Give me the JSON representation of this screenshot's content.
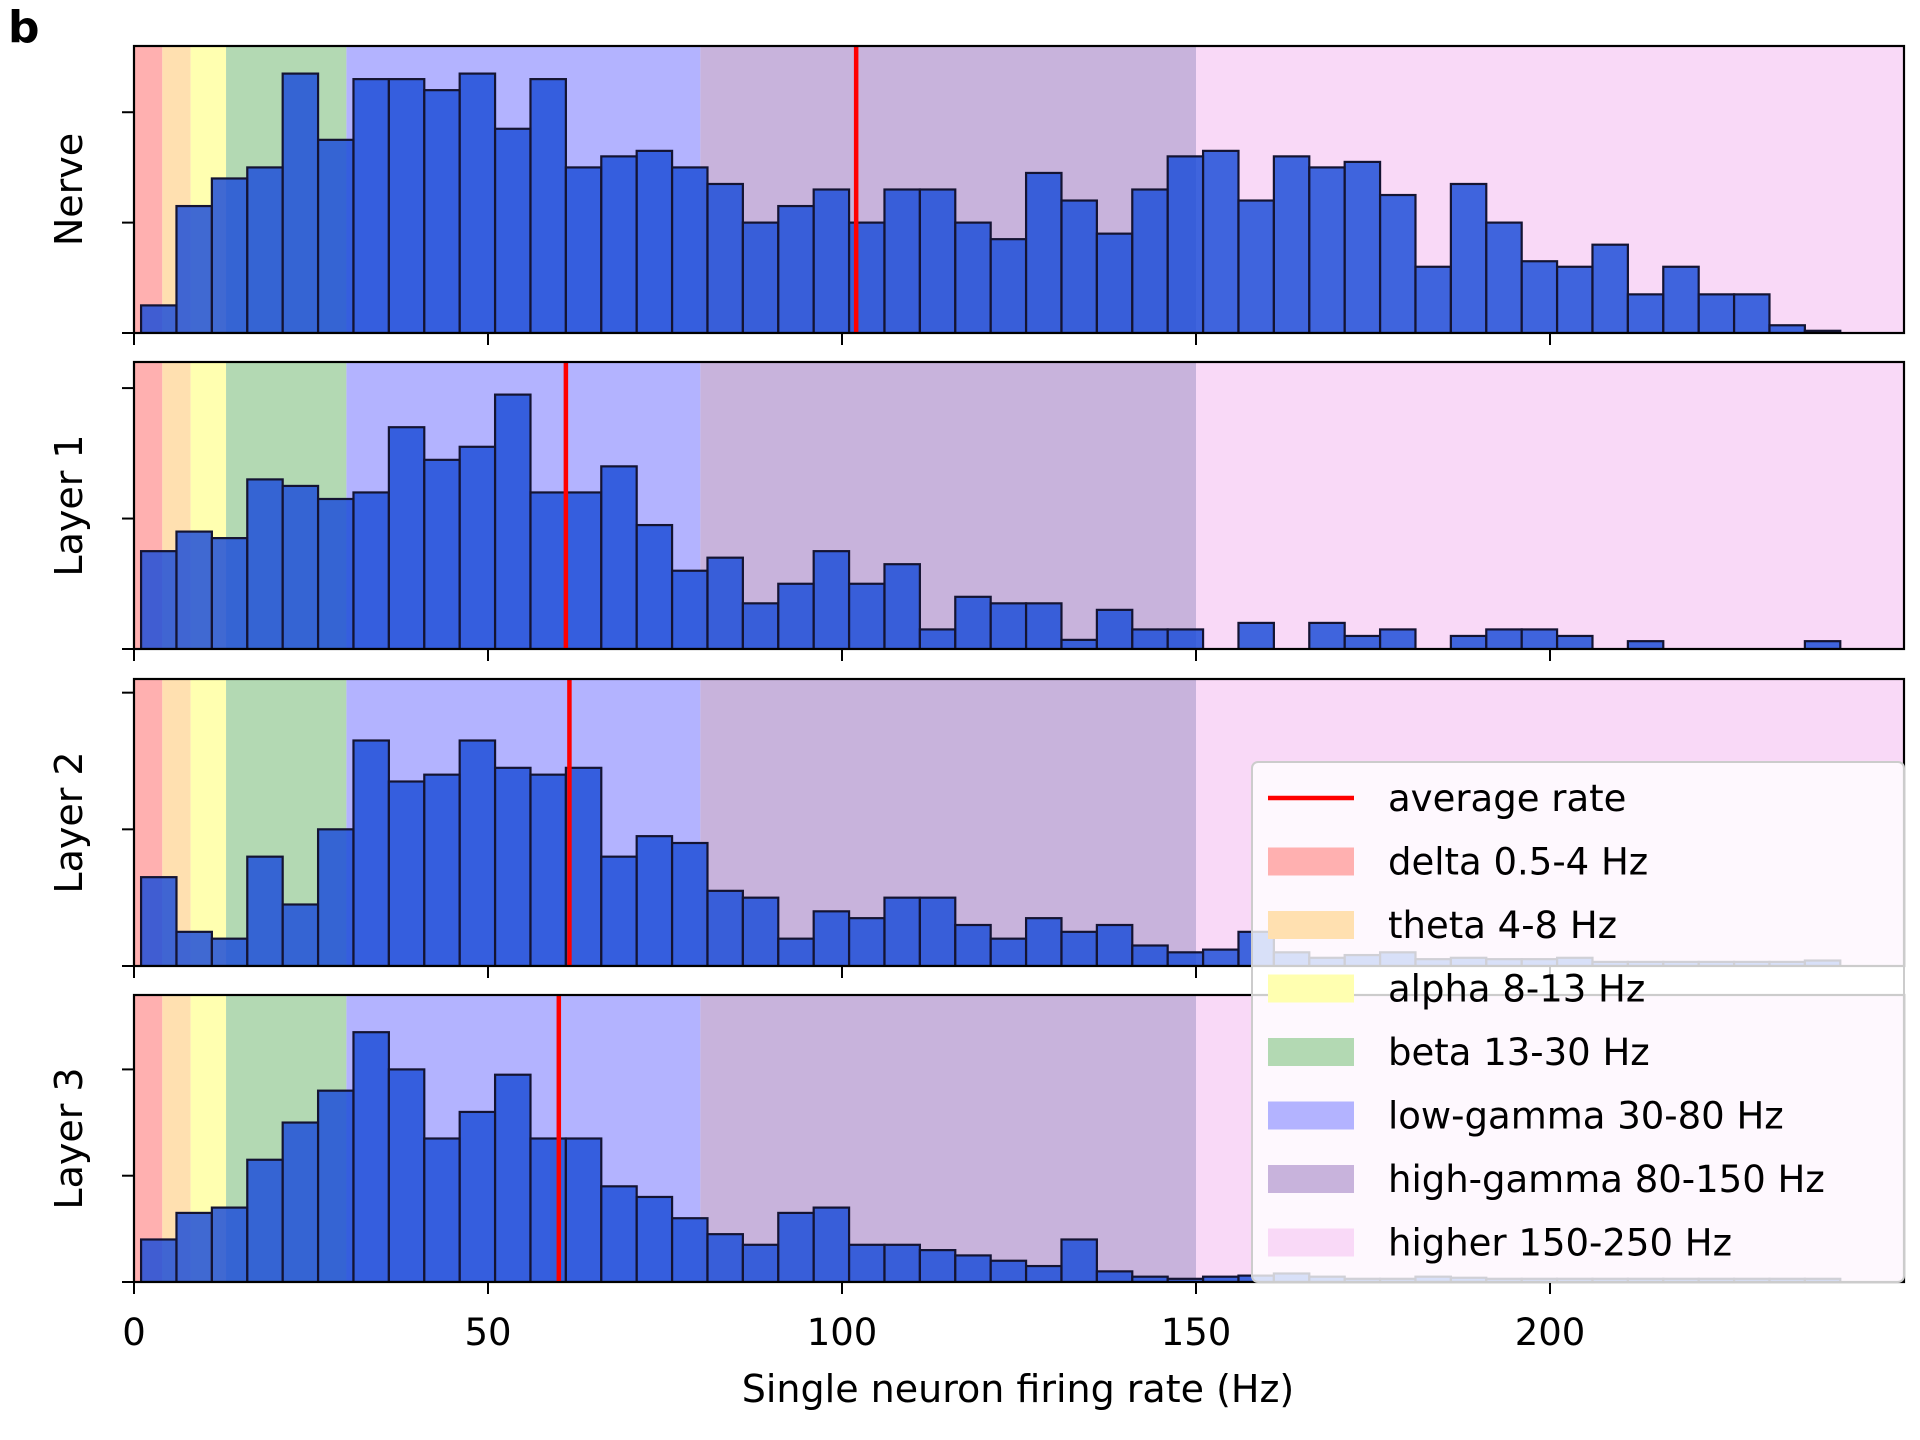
{
  "figure": {
    "panel_label": "b",
    "xlabel": "Single neuron firing rate (Hz)",
    "x_ticks": [
      0,
      50,
      100,
      150,
      200
    ]
  },
  "chart_data": {
    "type": "bar",
    "xlim": [
      0,
      250
    ],
    "bin_width": 5,
    "first_bin_start": 1,
    "bar_color": "#1f4fd8",
    "average_line_color": "#ff0000",
    "bands": [
      {
        "label": "delta 0.5-4 Hz",
        "from": 0,
        "to": 4,
        "color": "#ffb0b0"
      },
      {
        "label": "theta 4-8 Hz",
        "from": 4,
        "to": 8,
        "color": "#ffe0b0"
      },
      {
        "label": "alpha 8-13 Hz",
        "from": 8,
        "to": 13,
        "color": "#ffffb0"
      },
      {
        "label": "beta 13-30 Hz",
        "from": 13,
        "to": 30,
        "color": "#b3d9b3"
      },
      {
        "label": "low-gamma 30-80 Hz",
        "from": 30,
        "to": 80,
        "color": "#b3b3ff"
      },
      {
        "label": "high-gamma 80-150 Hz",
        "from": 80,
        "to": 150,
        "color": "#c8b3dc"
      },
      {
        "label": "higher 150-250 Hz",
        "from": 150,
        "to": 250,
        "color": "#f9d9f7"
      }
    ],
    "legend": {
      "position": "lower right",
      "average_label": "average rate"
    },
    "panels": [
      {
        "ylabel": "Nerve",
        "average_rate": 102,
        "ymax": 26,
        "y_ticks": [
          0,
          10,
          20
        ],
        "counts": [
          2.5,
          11.5,
          14,
          15,
          23.5,
          17.5,
          23,
          23,
          22,
          23.5,
          18.5,
          23,
          15,
          16,
          16.5,
          15,
          13.5,
          10,
          11.5,
          13,
          10,
          13,
          13,
          10,
          8.5,
          14.5,
          12,
          9,
          13,
          16,
          16.5,
          12,
          16,
          15,
          15.5,
          12.5,
          6,
          13.5,
          10,
          6.5,
          6,
          8,
          3.5,
          6,
          3.5,
          3.5,
          0.7,
          0.2
        ]
      },
      {
        "ylabel": "Layer 1",
        "average_rate": 61,
        "ymax": 22,
        "y_ticks": [
          0,
          10,
          20
        ],
        "counts": [
          7.5,
          9,
          8.5,
          13,
          12.5,
          11.5,
          12,
          17,
          14.5,
          15.5,
          19.5,
          12,
          12,
          14,
          9.5,
          6,
          7,
          3.5,
          5,
          7.5,
          5,
          6.5,
          1.5,
          4,
          3.5,
          3.5,
          0.7,
          3,
          1.5,
          1.5,
          0,
          2,
          0,
          2,
          1,
          1.5,
          0,
          1,
          1.5,
          1.5,
          1,
          0,
          0.6,
          0,
          0,
          0,
          0,
          0.6,
          0,
          0,
          0,
          0.6
        ]
      },
      {
        "ylabel": "Layer 2",
        "average_rate": 61.5,
        "ymax": 21,
        "y_ticks": [
          0,
          10,
          20
        ],
        "counts": [
          6.5,
          2.5,
          2,
          8,
          4.5,
          10,
          16.5,
          13.5,
          14,
          16.5,
          14.5,
          14,
          14.5,
          8,
          9.5,
          9,
          5.5,
          5,
          2,
          4,
          3.5,
          5,
          5,
          3,
          2,
          3.5,
          2.5,
          3,
          1.5,
          1,
          1.2,
          2.5,
          1,
          0.6,
          0.8,
          1,
          0.5,
          0.6,
          0.5,
          0.5,
          0.6,
          0.3,
          0.3,
          0.3,
          0.3,
          0.3,
          0.3,
          0.4
        ]
      },
      {
        "ylabel": "Layer 3",
        "average_rate": 60,
        "ymax": 27,
        "y_ticks": [
          0,
          10,
          20
        ],
        "counts": [
          4,
          6.5,
          7,
          11.5,
          15,
          18,
          23.5,
          20,
          13.5,
          16,
          19.5,
          13.5,
          13.5,
          9,
          8,
          6,
          4.5,
          3.5,
          6.5,
          7,
          3.5,
          3.5,
          3,
          2.5,
          2,
          1.5,
          4,
          1,
          0.5,
          0.3,
          0.5,
          0.6,
          0.8,
          0.5,
          0.3,
          0.3,
          0.5,
          0.4,
          0.3,
          0.3,
          0.3,
          0.3,
          0.3,
          0.3,
          0.3,
          0.3,
          0.3,
          0.3
        ]
      }
    ]
  }
}
